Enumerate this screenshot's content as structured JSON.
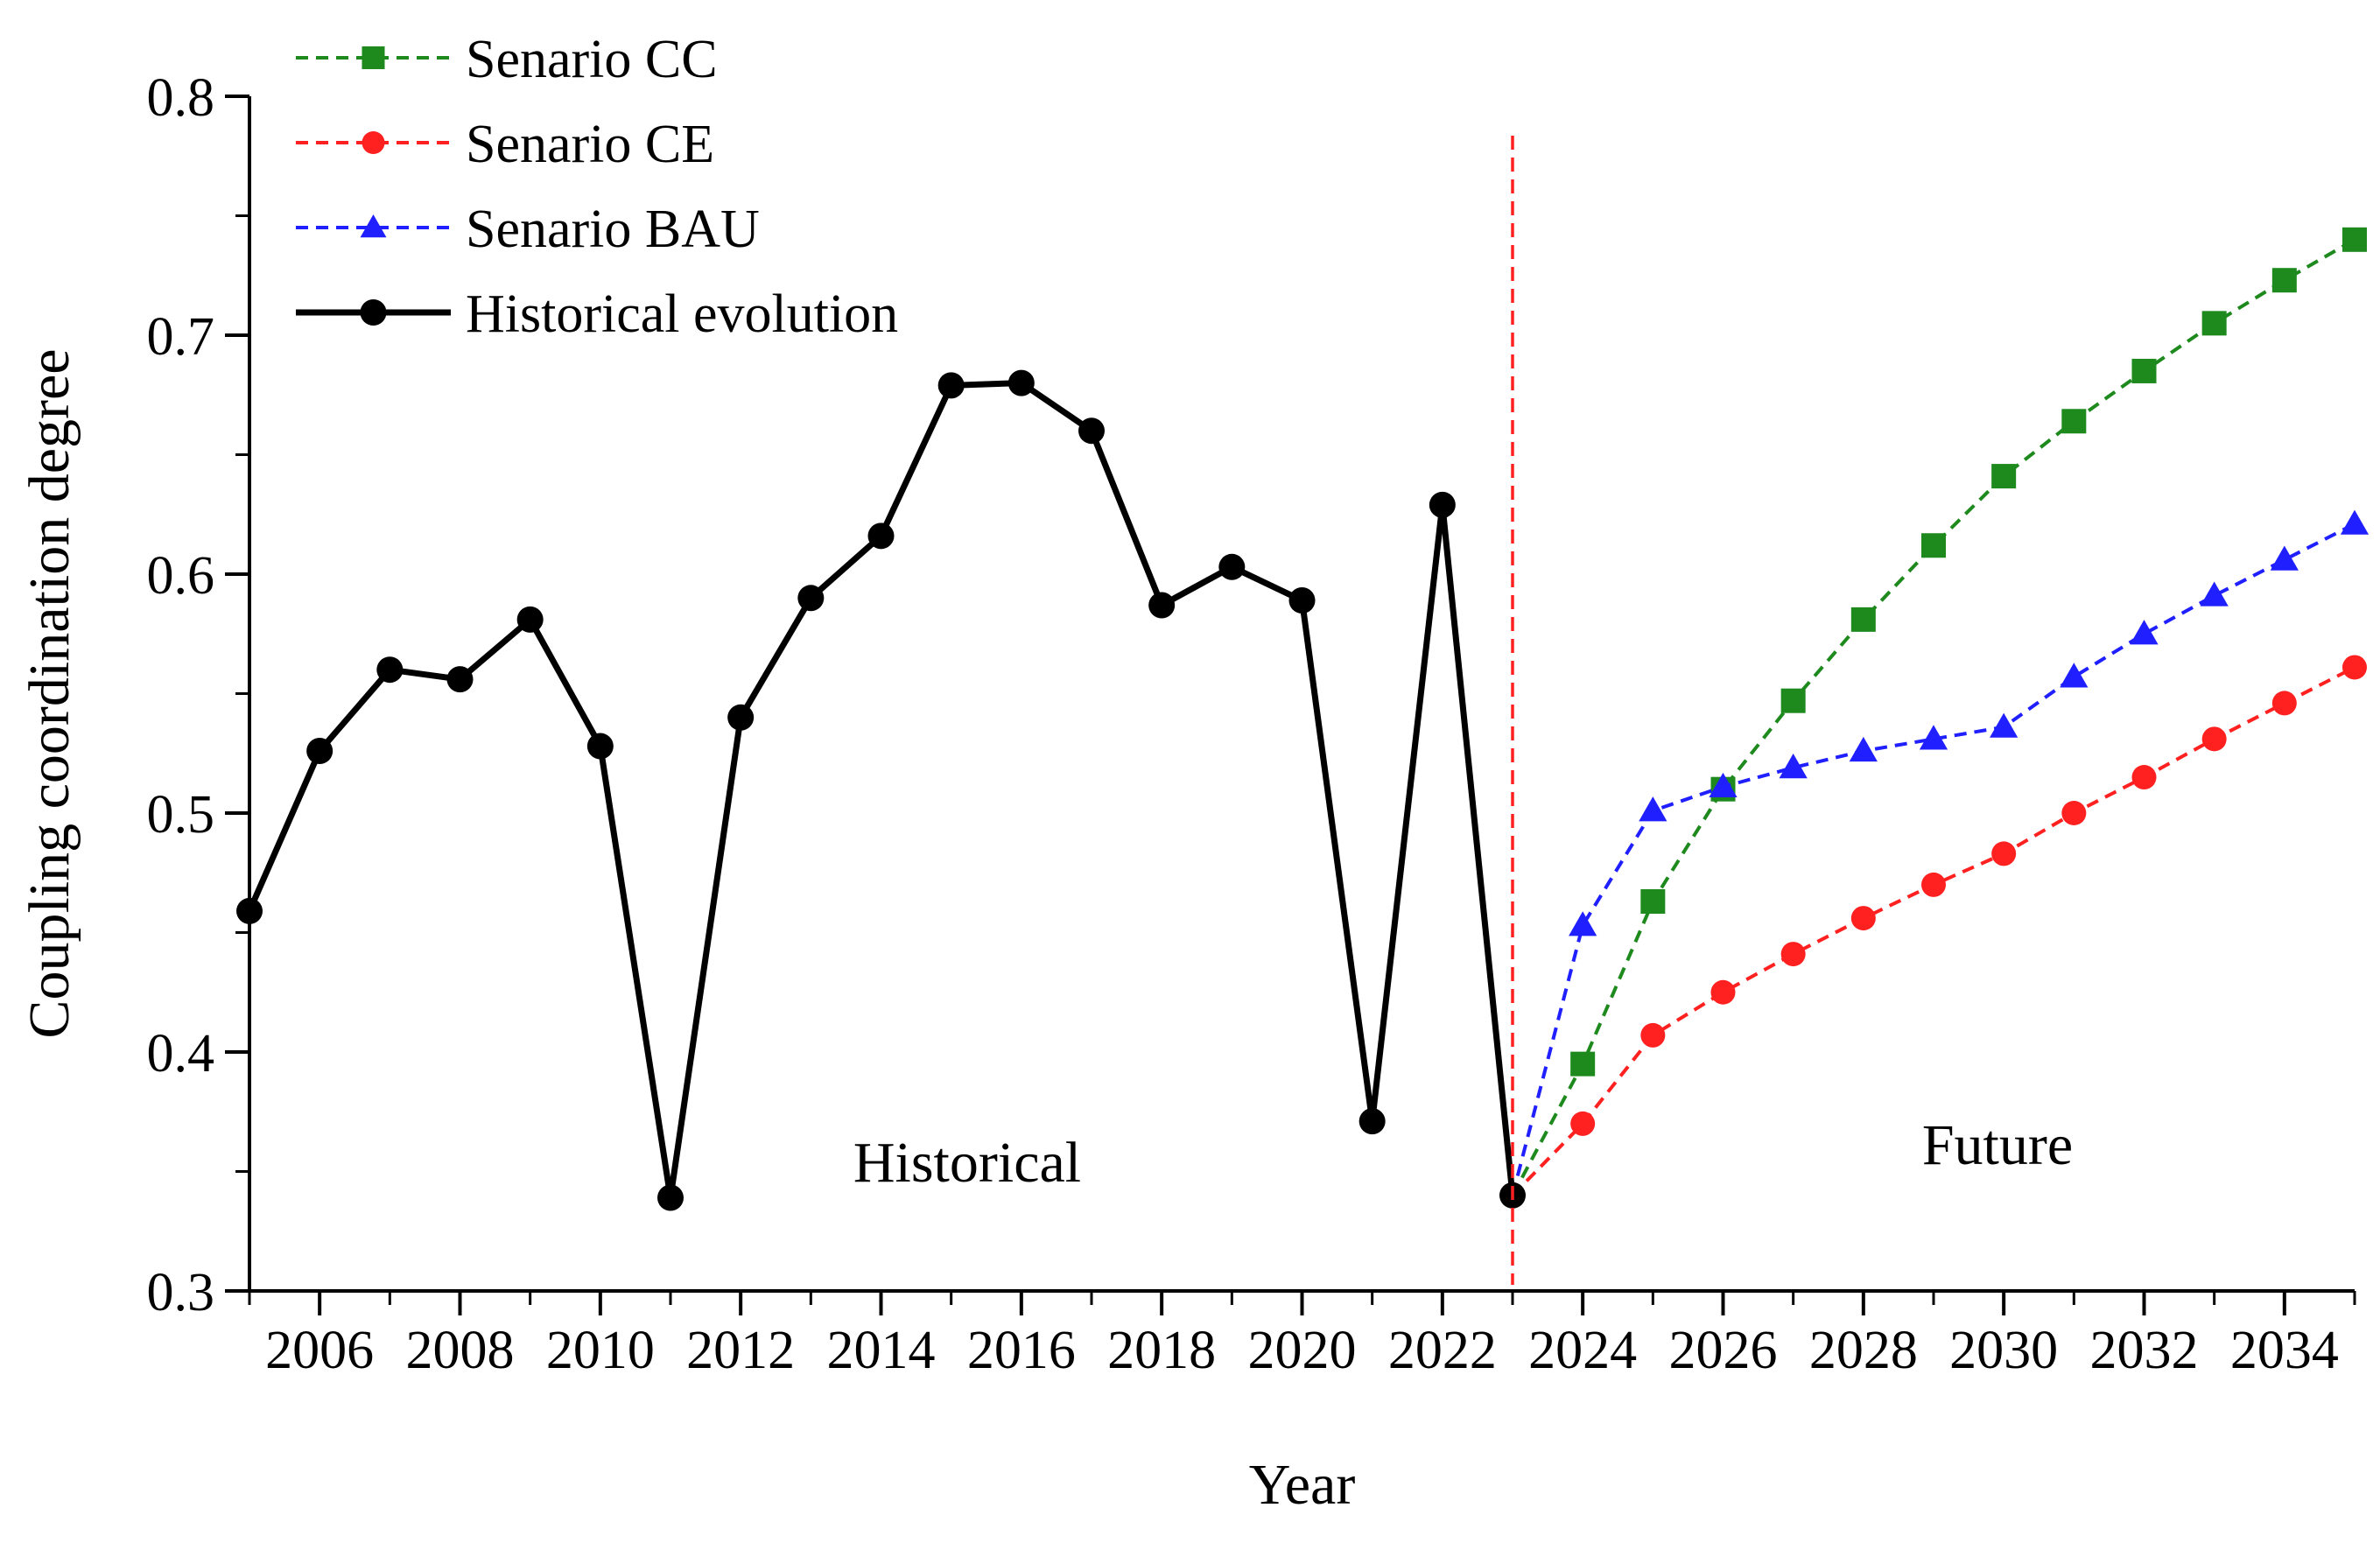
{
  "chart_data": {
    "type": "line",
    "title": "",
    "xlabel": "Year",
    "ylabel": "Coupling coordination degree",
    "xlim": [
      2005,
      2035
    ],
    "ylim": [
      0.3,
      0.8
    ],
    "yticks": [
      "0.3",
      "0.4",
      "0.5",
      "0.6",
      "0.7",
      "0.8"
    ],
    "xticks": [
      "2006",
      "2008",
      "2010",
      "2012",
      "2014",
      "2016",
      "2018",
      "2020",
      "2022",
      "2024",
      "2026",
      "2028",
      "2030",
      "2032",
      "2034"
    ],
    "divider_year": 2023,
    "annotations": {
      "historical": "Historical",
      "future": "Future"
    },
    "legend_position": "top-left",
    "series": [
      {
        "name": "Senario CC",
        "color": "#1e8a1e",
        "line_style": "dashed",
        "marker": "square",
        "x": [
          2023,
          2024,
          2025,
          2026,
          2027,
          2028,
          2029,
          2030,
          2031,
          2032,
          2033,
          2034,
          2035
        ],
        "values": [
          0.34,
          0.395,
          0.463,
          0.51,
          0.547,
          0.581,
          0.612,
          0.641,
          0.664,
          0.685,
          0.705,
          0.723,
          0.74
        ]
      },
      {
        "name": "Senario CE",
        "color": "#ff2020",
        "line_style": "dashed",
        "marker": "circle",
        "x": [
          2023,
          2024,
          2025,
          2026,
          2027,
          2028,
          2029,
          2030,
          2031,
          2032,
          2033,
          2034,
          2035
        ],
        "values": [
          0.34,
          0.37,
          0.407,
          0.425,
          0.441,
          0.456,
          0.47,
          0.483,
          0.5,
          0.515,
          0.531,
          0.546,
          0.561
        ]
      },
      {
        "name": "Senario BAU",
        "color": "#1f1fff",
        "line_style": "dashed",
        "marker": "triangle",
        "x": [
          2023,
          2024,
          2025,
          2026,
          2027,
          2028,
          2029,
          2030,
          2031,
          2032,
          2033,
          2034,
          2035
        ],
        "values": [
          0.34,
          0.453,
          0.501,
          0.511,
          0.519,
          0.526,
          0.531,
          0.536,
          0.557,
          0.575,
          0.591,
          0.606,
          0.621
        ]
      },
      {
        "name": "Historical evolution",
        "color": "#000000",
        "line_style": "solid",
        "marker": "circle",
        "x": [
          2005,
          2006,
          2007,
          2008,
          2009,
          2010,
          2011,
          2012,
          2013,
          2014,
          2015,
          2016,
          2017,
          2018,
          2019,
          2020,
          2021,
          2022,
          2023
        ],
        "values": [
          0.459,
          0.526,
          0.56,
          0.556,
          0.581,
          0.528,
          0.339,
          0.54,
          0.59,
          0.616,
          0.679,
          0.68,
          0.66,
          0.587,
          0.603,
          0.589,
          0.371,
          0.629,
          0.34
        ]
      }
    ]
  }
}
